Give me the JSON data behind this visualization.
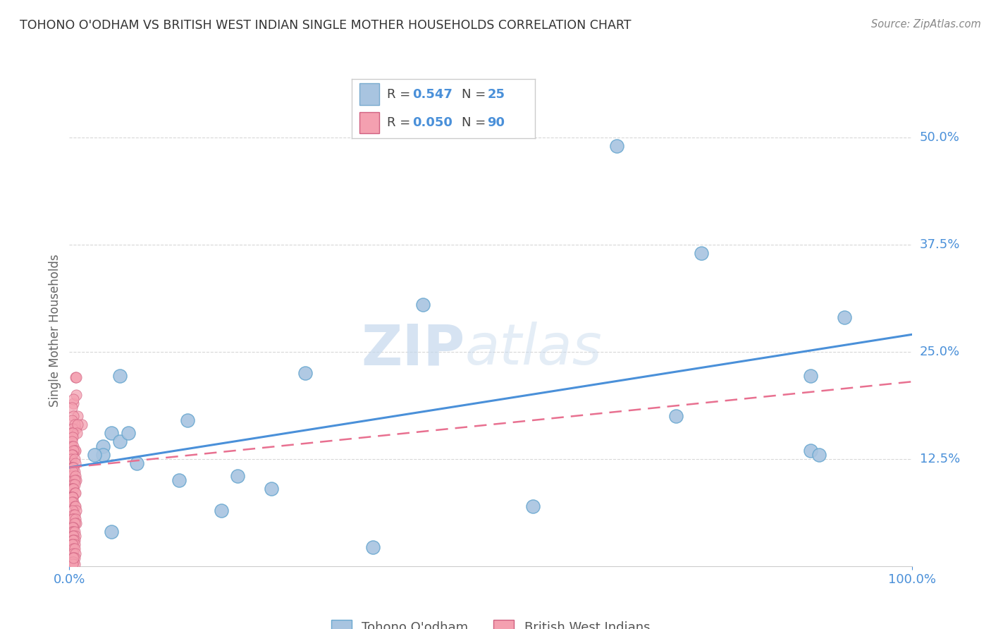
{
  "title": "TOHONO O'ODHAM VS BRITISH WEST INDIAN SINGLE MOTHER HOUSEHOLDS CORRELATION CHART",
  "source": "Source: ZipAtlas.com",
  "ylabel": "Single Mother Households",
  "ytick_labels": [
    "12.5%",
    "25.0%",
    "37.5%",
    "50.0%"
  ],
  "ytick_values": [
    0.125,
    0.25,
    0.375,
    0.5
  ],
  "xlim": [
    0.0,
    1.0
  ],
  "ylim": [
    0.0,
    0.55
  ],
  "legend_blue_label": "Tohono O'odham",
  "legend_pink_label": "British West Indians",
  "legend_blue_R": "0.547",
  "legend_blue_N": "25",
  "legend_pink_R": "0.050",
  "legend_pink_N": "90",
  "blue_color": "#a8c4e0",
  "pink_color": "#f4a0b0",
  "line_blue_color": "#4a90d9",
  "line_pink_color": "#e87090",
  "watermark_zip": "ZIP",
  "watermark_atlas": "atlas",
  "blue_scatter_x": [
    0.65,
    0.75,
    0.42,
    0.06,
    0.13,
    0.18,
    0.88,
    0.92,
    0.88,
    0.72,
    0.55,
    0.04,
    0.04,
    0.05,
    0.06,
    0.07,
    0.2,
    0.28,
    0.05,
    0.03,
    0.08,
    0.14,
    0.24,
    0.89,
    0.36
  ],
  "blue_scatter_y": [
    0.49,
    0.365,
    0.305,
    0.222,
    0.1,
    0.065,
    0.222,
    0.29,
    0.135,
    0.175,
    0.07,
    0.14,
    0.13,
    0.155,
    0.145,
    0.155,
    0.105,
    0.225,
    0.04,
    0.13,
    0.12,
    0.17,
    0.09,
    0.13,
    0.022
  ],
  "pink_scatter_x": [
    0.005,
    0.008,
    0.005,
    0.003,
    0.01,
    0.015,
    0.005,
    0.003,
    0.007,
    0.006,
    0.004,
    0.002,
    0.01,
    0.009,
    0.003,
    0.004,
    0.004,
    0.003,
    0.003,
    0.005,
    0.006,
    0.007,
    0.005,
    0.004,
    0.003,
    0.002,
    0.003,
    0.006,
    0.007,
    0.003,
    0.004,
    0.005,
    0.006,
    0.003,
    0.004,
    0.005,
    0.007,
    0.008,
    0.006,
    0.005,
    0.006,
    0.003,
    0.004,
    0.005,
    0.006,
    0.007,
    0.004,
    0.003,
    0.004,
    0.005,
    0.003,
    0.006,
    0.007,
    0.008,
    0.004,
    0.005,
    0.006,
    0.005,
    0.004,
    0.007,
    0.008,
    0.006,
    0.005,
    0.004,
    0.003,
    0.005,
    0.006,
    0.007,
    0.004,
    0.005,
    0.006,
    0.004,
    0.005,
    0.006,
    0.003,
    0.004,
    0.005,
    0.006,
    0.005,
    0.007,
    0.006,
    0.004,
    0.005,
    0.003,
    0.005,
    0.006,
    0.004,
    0.007,
    0.008,
    0.005
  ],
  "pink_scatter_y": [
    0.19,
    0.2,
    0.195,
    0.185,
    0.175,
    0.165,
    0.175,
    0.17,
    0.16,
    0.165,
    0.16,
    0.155,
    0.165,
    0.155,
    0.15,
    0.155,
    0.15,
    0.145,
    0.14,
    0.14,
    0.135,
    0.135,
    0.135,
    0.13,
    0.13,
    0.125,
    0.12,
    0.125,
    0.12,
    0.115,
    0.115,
    0.115,
    0.11,
    0.105,
    0.11,
    0.1,
    0.105,
    0.1,
    0.1,
    0.095,
    0.095,
    0.09,
    0.09,
    0.09,
    0.085,
    0.085,
    0.08,
    0.08,
    0.08,
    0.075,
    0.075,
    0.07,
    0.07,
    0.065,
    0.065,
    0.06,
    0.06,
    0.055,
    0.055,
    0.055,
    0.05,
    0.05,
    0.045,
    0.045,
    0.04,
    0.04,
    0.04,
    0.035,
    0.035,
    0.035,
    0.03,
    0.03,
    0.03,
    0.025,
    0.025,
    0.025,
    0.02,
    0.02,
    0.015,
    0.015,
    0.01,
    0.01,
    0.005,
    0.005,
    0.005,
    0.002,
    0.002,
    0.22,
    0.22,
    0.01
  ],
  "blue_line_x": [
    0.0,
    1.0
  ],
  "blue_line_y": [
    0.115,
    0.27
  ],
  "pink_line_x": [
    0.0,
    1.0
  ],
  "pink_line_y": [
    0.115,
    0.215
  ],
  "background_color": "#ffffff",
  "grid_color": "#d8d8d8",
  "title_color": "#333333",
  "axis_label_color": "#666666",
  "tick_color": "#4a90d9"
}
